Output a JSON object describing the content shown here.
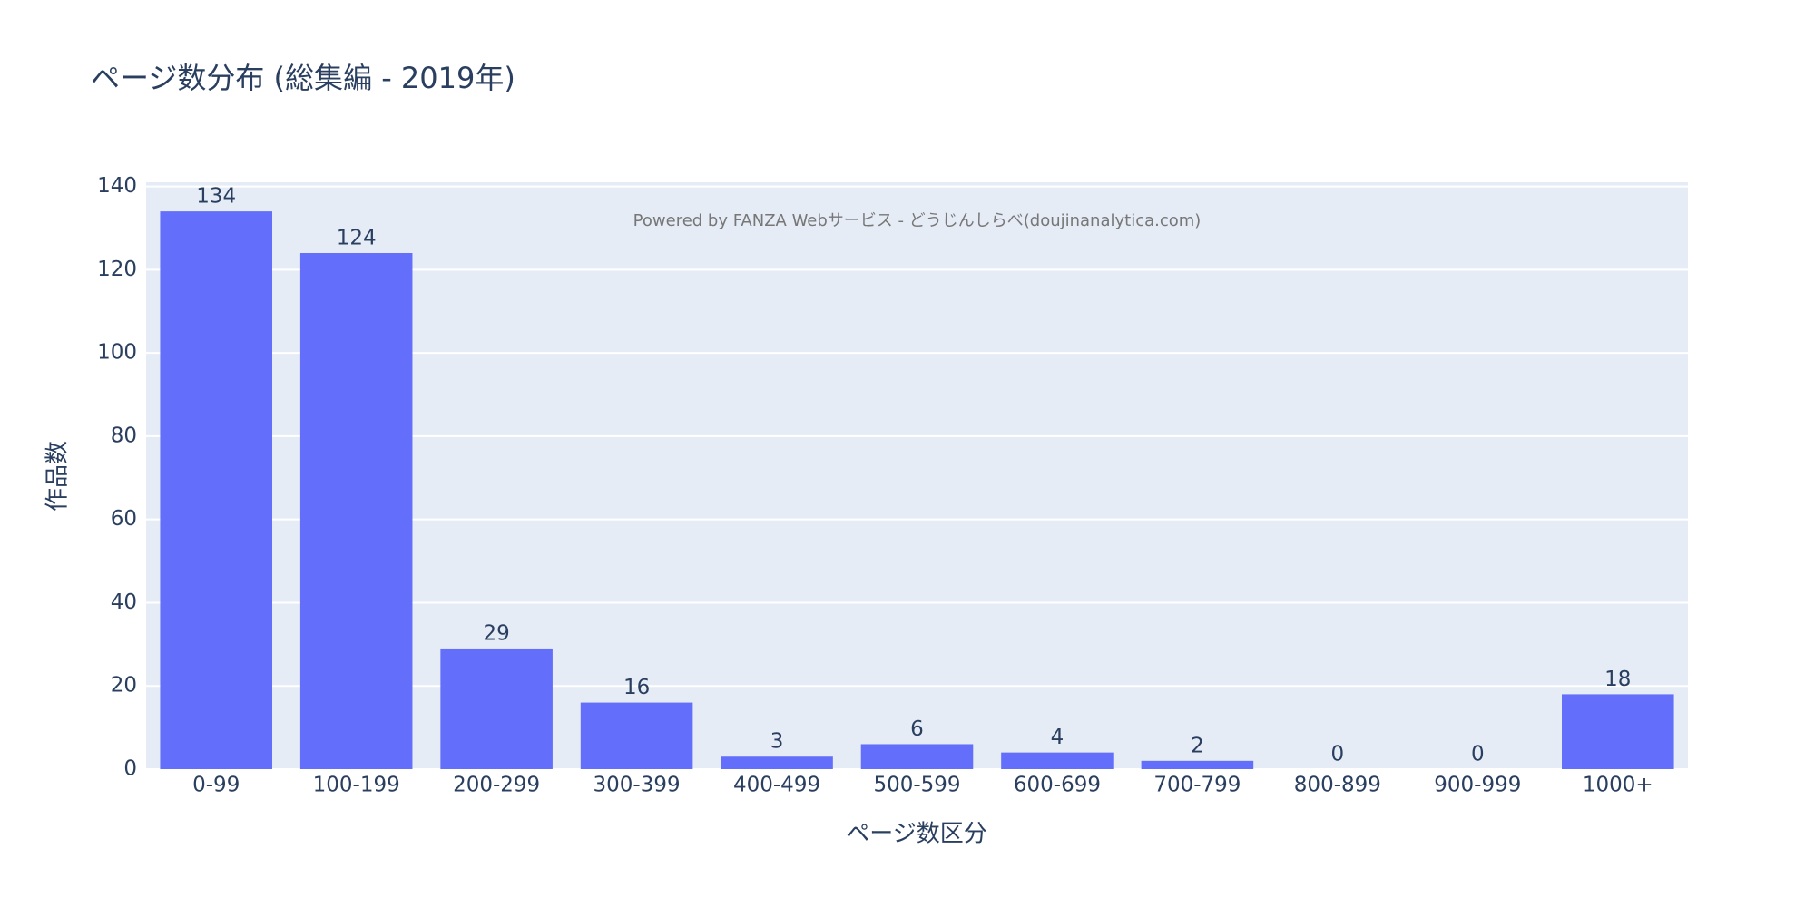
{
  "chart_data": {
    "type": "bar",
    "title": "ページ数分布 (総集編 - 2019年)",
    "x_label": "ページ数区分",
    "y_label": "作品数",
    "annotation": "Powered by FANZA Webサービス - どうじんしらべ(doujinanalytica.com)",
    "categories": [
      "0-99",
      "100-199",
      "200-299",
      "300-399",
      "400-499",
      "500-599",
      "600-699",
      "700-799",
      "800-899",
      "900-999",
      "1000+"
    ],
    "values": [
      134,
      124,
      29,
      16,
      3,
      6,
      4,
      2,
      0,
      0,
      18
    ],
    "color": "#636efa",
    "ylim": [
      0,
      141
    ],
    "yticks": [
      0,
      20,
      40,
      60,
      80,
      100,
      120,
      140
    ],
    "grid": true
  }
}
